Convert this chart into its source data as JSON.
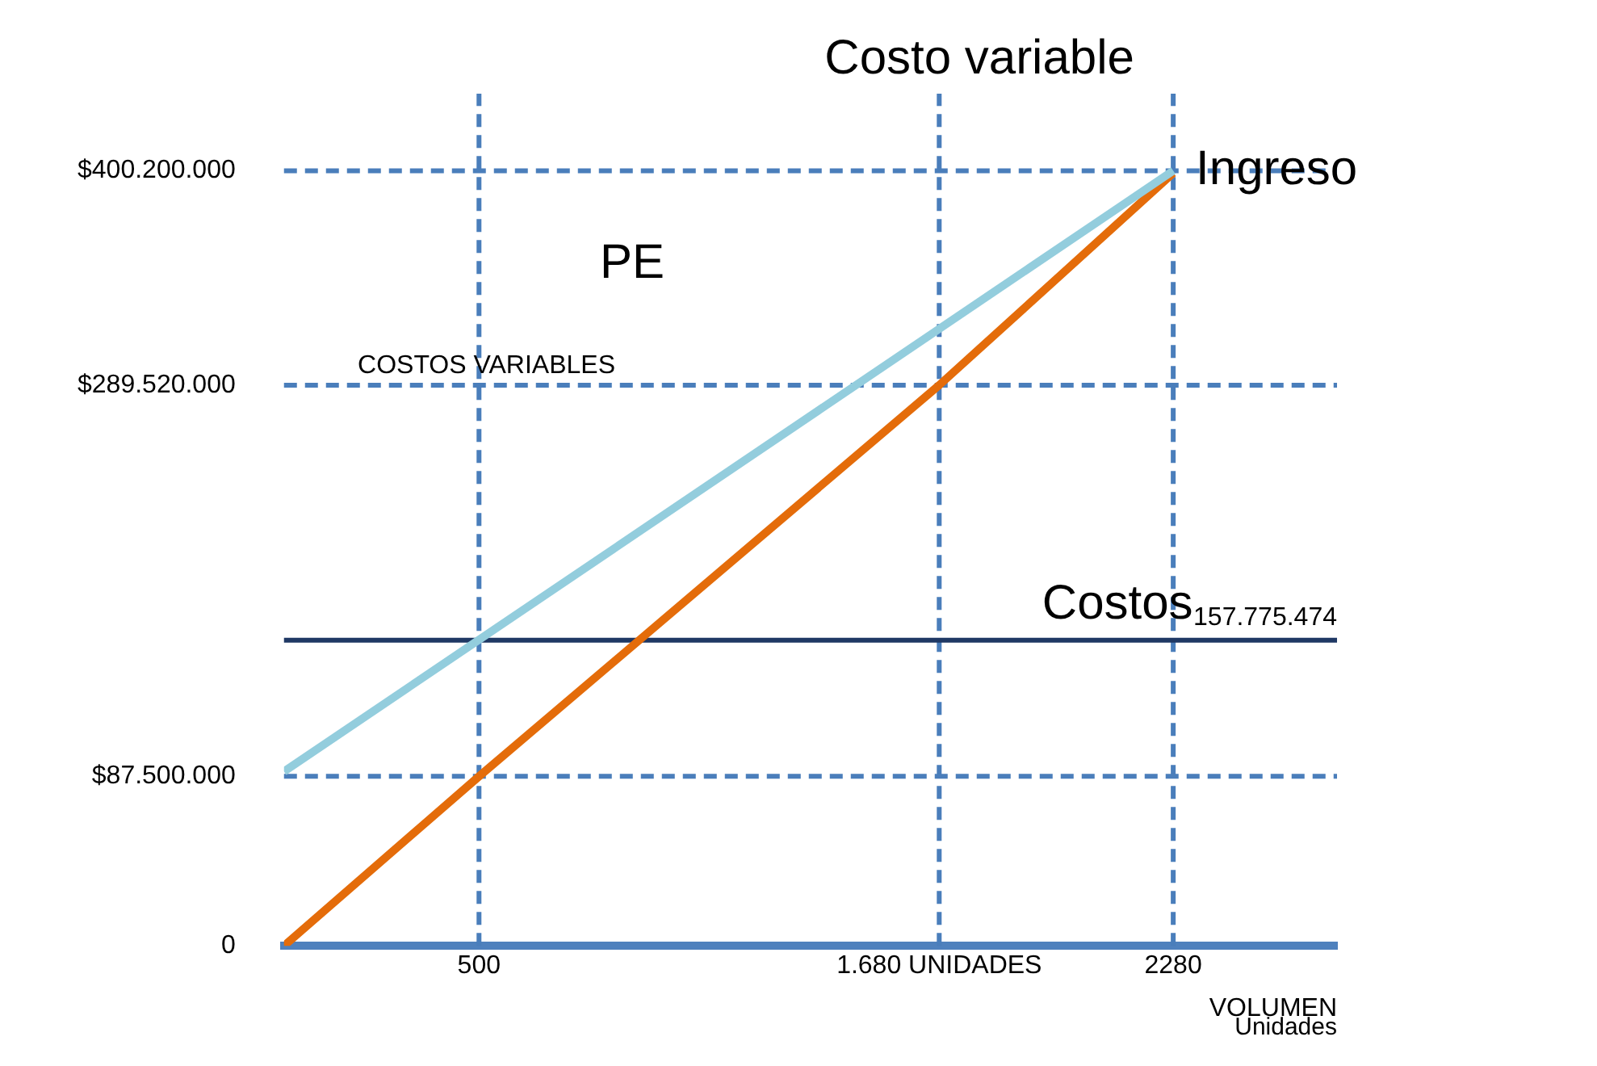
{
  "chart_data": {
    "type": "line",
    "xlabel": "VOLUMEN",
    "xlim": [
      0,
      2700
    ],
    "ylim": [
      0,
      440000000
    ],
    "xticks": [
      500,
      {
        "value": 1680,
        "label": "1.680 UNIDADES"
      },
      2280
    ],
    "yticks": [
      0,
      {
        "value": 87500000,
        "label": "$87.500.000"
      },
      {
        "value": 289520000,
        "label": "$289.520.000"
      },
      {
        "value": 400200000,
        "label": "$400.200.000"
      }
    ],
    "series": [
      {
        "name": "Ingreso",
        "color": "#93cddd",
        "x": [
          0,
          2280
        ],
        "values": [
          90000000,
          400200000
        ]
      },
      {
        "name": "Costo variable",
        "color": "#e46c0a",
        "x": [
          0,
          500,
          1680,
          2280
        ],
        "values": [
          0,
          87500000,
          289520000,
          399000000
        ]
      }
    ],
    "ref_lines": [
      {
        "axis": "y",
        "value": 87500000,
        "color": "#4a7ebb",
        "line_style": "dashed"
      },
      {
        "axis": "y",
        "value": 289520000,
        "color": "#4a7ebb",
        "line_style": "dashed"
      },
      {
        "axis": "y",
        "value": 400200000,
        "color": "#4a7ebb",
        "line_style": "dashed"
      },
      {
        "axis": "x",
        "value": 500,
        "color": "#4a7ebb",
        "line_style": "dashed"
      },
      {
        "axis": "x",
        "value": 1680,
        "color": "#4a7ebb",
        "line_style": "dashed"
      },
      {
        "axis": "x",
        "value": 2280,
        "color": "#4a7ebb",
        "line_style": "dashed"
      },
      {
        "axis": "y",
        "value": 157775474,
        "label": "157.775.474",
        "color": "#1f3864",
        "line_style": "solid"
      }
    ],
    "annotations": [
      "PE",
      "COSTOS VARIABLES",
      "Costos",
      "Unidades"
    ],
    "grid": false,
    "legend": false,
    "marker": "none",
    "line_style": "solid"
  }
}
